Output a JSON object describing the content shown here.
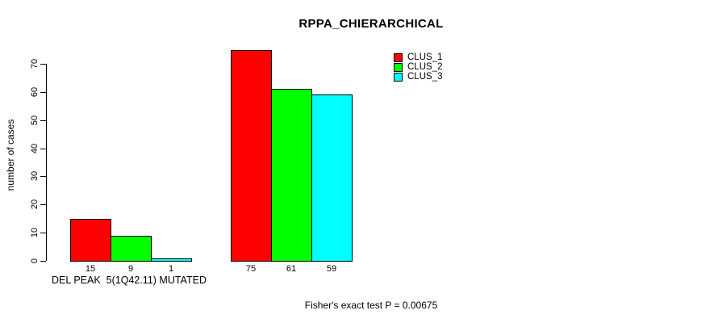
{
  "title": "RPPA_CHIERARCHICAL",
  "y_axis": {
    "label": "number of cases",
    "ticks": [
      "0",
      "10",
      "20",
      "30",
      "40",
      "50",
      "60",
      "70"
    ]
  },
  "x_axis": {
    "group_label": "DEL PEAK  5(1Q42.11) MUTATED"
  },
  "footer": "Fisher's exact test P = 0.00675",
  "legend": {
    "items": [
      {
        "label": "CLUS_1",
        "color": "#FF0000"
      },
      {
        "label": "CLUS_2",
        "color": "#00FF00"
      },
      {
        "label": "CLUS_3",
        "color": "#00FFFF"
      }
    ]
  },
  "chart_data": {
    "type": "bar",
    "title": "RPPA_CHIERARCHICAL",
    "ylabel": "number of cases",
    "ylim": [
      0,
      75
    ],
    "yticks": [
      0,
      10,
      20,
      30,
      40,
      50,
      60,
      70
    ],
    "grid": false,
    "legend_position": "top-right",
    "categories": [
      "DEL PEAK  5(1Q42.11) MUTATED",
      ""
    ],
    "series": [
      {
        "name": "CLUS_1",
        "color": "#FF0000",
        "values": [
          15,
          75
        ]
      },
      {
        "name": "CLUS_2",
        "color": "#00FF00",
        "values": [
          9,
          61
        ]
      },
      {
        "name": "CLUS_3",
        "color": "#00FFFF",
        "values": [
          1,
          59
        ]
      }
    ],
    "bar_value_labels": [
      [
        15,
        9,
        1
      ],
      [
        75,
        61,
        59
      ]
    ],
    "annotation": "Fisher's exact test P = 0.00675"
  }
}
